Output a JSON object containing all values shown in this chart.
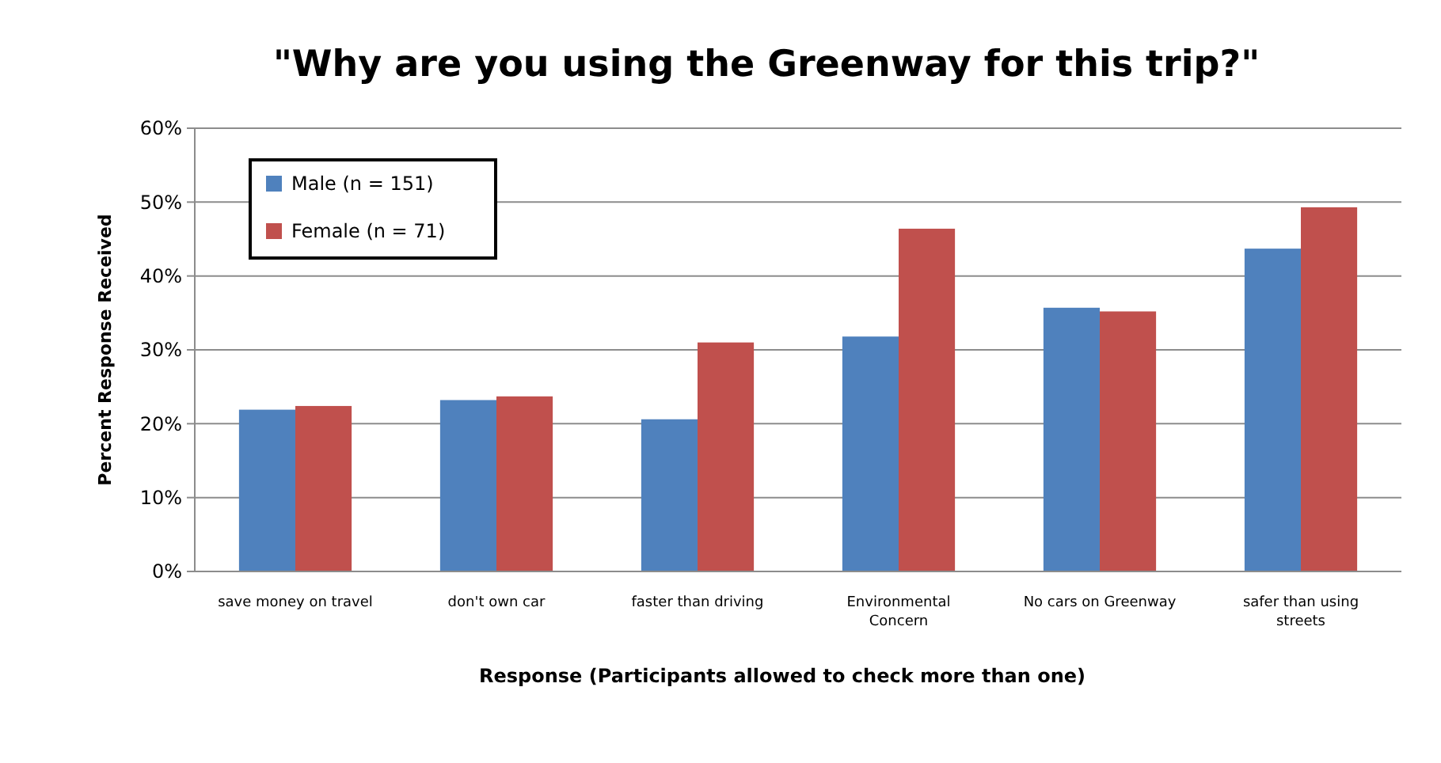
{
  "chart_data": {
    "type": "bar",
    "title": "\"Why are you using the Greenway for this trip?\"",
    "xlabel": "Response (Participants allowed to check more than one)",
    "ylabel": "Percent Response Received",
    "categories": [
      "save money on travel",
      "don't own car",
      "faster than driving",
      "Environmental Concern",
      "No cars on Greenway",
      "safer than using streets"
    ],
    "series": [
      {
        "name": "Male (n = 151)",
        "color": "#4f81bd",
        "values": [
          21.9,
          23.2,
          20.6,
          31.8,
          35.7,
          43.7
        ]
      },
      {
        "name": "Female (n = 71)",
        "color": "#c0504d",
        "values": [
          22.4,
          23.7,
          31.0,
          46.4,
          35.2,
          49.3
        ]
      }
    ],
    "ylim": [
      0,
      60
    ],
    "yticks": [
      {
        "value": 0,
        "label": "0%"
      },
      {
        "value": 10,
        "label": "10%"
      },
      {
        "value": 20,
        "label": "20%"
      },
      {
        "value": 30,
        "label": "30%"
      },
      {
        "value": 40,
        "label": "40%"
      },
      {
        "value": 50,
        "label": "50%"
      },
      {
        "value": 60,
        "label": "60%"
      }
    ],
    "grid": "y",
    "legend": "top left"
  }
}
